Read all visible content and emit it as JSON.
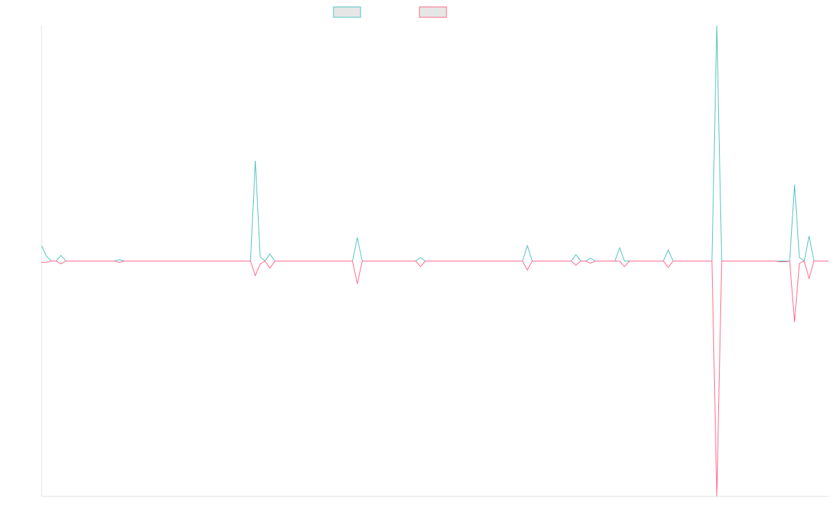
{
  "chart_data": {
    "type": "line",
    "ylim": [
      -100,
      100
    ],
    "series": [
      {
        "color": "#4bc0c0",
        "values": [
          6.5,
          2,
          0,
          0,
          2.4,
          0,
          0,
          0,
          0,
          0,
          0,
          0,
          0,
          0,
          0,
          0,
          0.6,
          0,
          0,
          0,
          0,
          0,
          0,
          0,
          0,
          0,
          0,
          0,
          0,
          0,
          0,
          0,
          0,
          0,
          0,
          0,
          0,
          0,
          0,
          0,
          0,
          0,
          0,
          0,
          42.6,
          1.8,
          0,
          3,
          0,
          0,
          0,
          0,
          0,
          0,
          0,
          0,
          0,
          0,
          0,
          0,
          0,
          0,
          0,
          0,
          0,
          10,
          0,
          0,
          0,
          0,
          0,
          0,
          0,
          0,
          0,
          0,
          0,
          0,
          1.5,
          0,
          0,
          0,
          0,
          0,
          0,
          0,
          0,
          0,
          0,
          0,
          0,
          0,
          0,
          0,
          0,
          0,
          0,
          0,
          0,
          0,
          6.5,
          0,
          0,
          0,
          0,
          0,
          0,
          0,
          0,
          0,
          2.7,
          0,
          0,
          1.2,
          0,
          0,
          0,
          0,
          0,
          5.6,
          0,
          0,
          0,
          0,
          0,
          0,
          0,
          0,
          0,
          4.7,
          0,
          0,
          0,
          0,
          0,
          0,
          0,
          0,
          0,
          100,
          0,
          0,
          0,
          0,
          0,
          0,
          0,
          0,
          0,
          0,
          0,
          0,
          0,
          0,
          0,
          32.5,
          1.5,
          0,
          10.6,
          0,
          0,
          0,
          0
        ]
      },
      {
        "color": "#ff6384",
        "values": [
          -0.6,
          -0.5,
          0,
          0,
          -1.2,
          0,
          0,
          0,
          0,
          0,
          0,
          0,
          0,
          0,
          0,
          0,
          -0.6,
          0,
          0,
          0,
          0,
          0,
          0,
          0,
          0,
          0,
          0,
          0,
          0,
          0,
          0,
          0,
          0,
          0,
          0,
          0,
          0,
          0,
          0,
          0,
          0,
          0,
          0,
          0,
          -6.2,
          -1.2,
          0,
          -3,
          0,
          0,
          0,
          0,
          0,
          0,
          0,
          0,
          0,
          0,
          0,
          0,
          0,
          0,
          0,
          0,
          0,
          -9.7,
          0,
          0,
          0,
          0,
          0,
          0,
          0,
          0,
          0,
          0,
          0,
          0,
          -2.4,
          0,
          0,
          0,
          0,
          0,
          0,
          0,
          0,
          0,
          0,
          0,
          0,
          0,
          0,
          0,
          0,
          0,
          0,
          0,
          0,
          0,
          -3.8,
          0,
          0,
          0,
          0,
          0,
          0,
          0,
          0,
          0,
          -1.8,
          0,
          0,
          -0.9,
          0,
          0,
          0,
          0,
          0,
          0,
          -2.4,
          0,
          0,
          0,
          0,
          0,
          0,
          0,
          0,
          -2.7,
          0,
          0,
          0,
          0,
          0,
          0,
          0,
          0,
          0,
          -100,
          0,
          0,
          0,
          0,
          0,
          0,
          0,
          0,
          0,
          0,
          0,
          0,
          -0.3,
          -0.3,
          0,
          -26,
          -1,
          0,
          -7.4,
          0,
          0,
          0,
          0
        ]
      }
    ]
  }
}
